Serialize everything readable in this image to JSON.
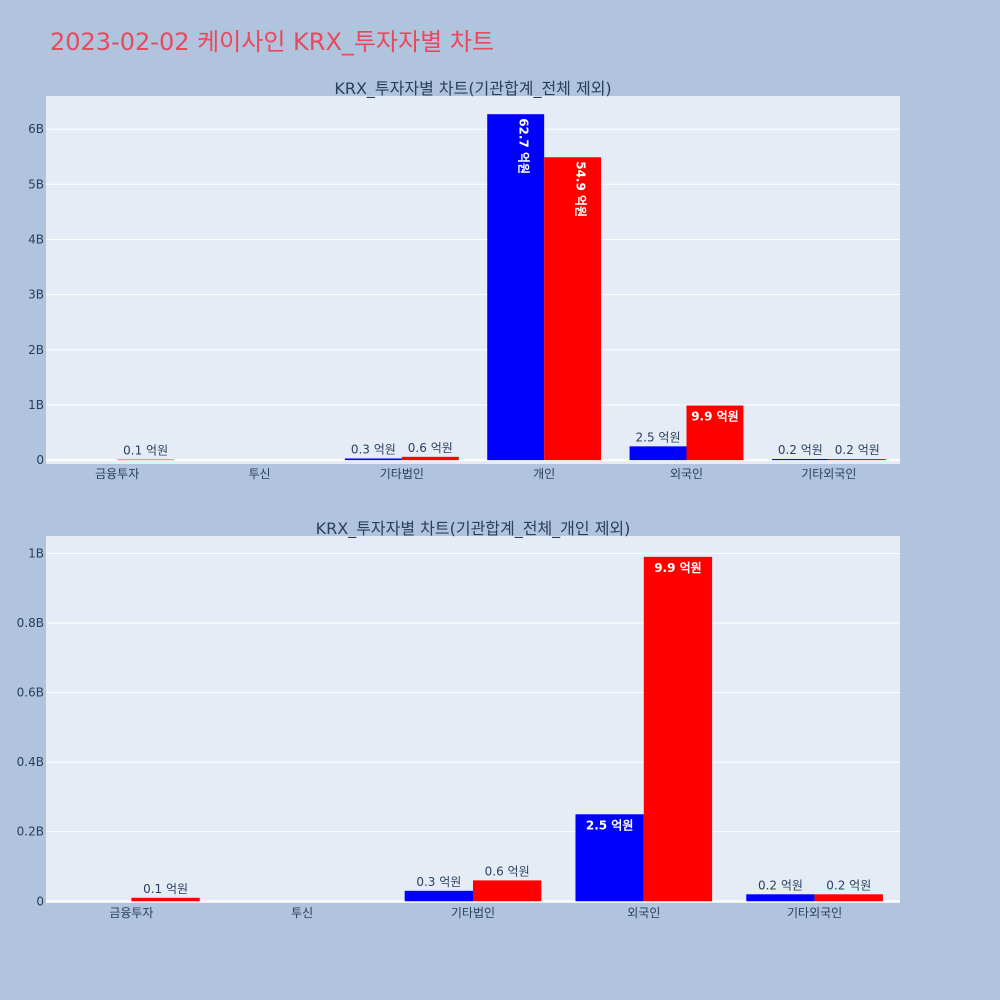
{
  "page": {
    "title": "2023-02-02 케이사인 KRX_투자자별 차트"
  },
  "colors": {
    "series_a": "#0000ff",
    "series_b": "#ff0000",
    "plot_bg": "#e5ecf6",
    "page_bg": "#b0c4de",
    "title": "#e8495d"
  },
  "chart_data": [
    {
      "type": "bar",
      "title": "KRX_투자자별 차트(기관합계_전체 제외)",
      "categories": [
        "금융투자",
        "투신",
        "기타법인",
        "개인",
        "외국인",
        "기타외국인"
      ],
      "series": [
        {
          "values": [
            0,
            0,
            30000000,
            6270000000,
            250000000,
            20000000
          ],
          "labels": [
            "",
            "",
            "0.3 억원",
            "62.7 억원",
            "2.5 억원",
            "0.2 억원"
          ]
        },
        {
          "values": [
            10000000,
            0,
            60000000,
            5490000000,
            990000000,
            20000000
          ],
          "labels": [
            "0.1 억원",
            "",
            "0.6 억원",
            "54.9 억원",
            "9.9 억원",
            "0.2 억원"
          ]
        }
      ],
      "yticks": [
        0,
        1000000000,
        2000000000,
        3000000000,
        4000000000,
        5000000000,
        6000000000
      ],
      "ytick_labels": [
        "0",
        "1B",
        "2B",
        "3B",
        "4B",
        "5B",
        "6B"
      ],
      "ylim": [
        -70000000,
        6600000000
      ],
      "grid": true
    },
    {
      "type": "bar",
      "title": "KRX_투자자별 차트(기관합계_전체_개인 제외)",
      "categories": [
        "금융투자",
        "투신",
        "기타법인",
        "외국인",
        "기타외국인"
      ],
      "series": [
        {
          "values": [
            0,
            0,
            30000000,
            250000000,
            20000000
          ],
          "labels": [
            "",
            "",
            "0.3 억원",
            "2.5 억원",
            "0.2 억원"
          ]
        },
        {
          "values": [
            10000000,
            0,
            60000000,
            990000000,
            20000000
          ],
          "labels": [
            "0.1 억원",
            "",
            "0.6 억원",
            "9.9 억원",
            "0.2 억원"
          ]
        }
      ],
      "yticks": [
        0,
        200000000,
        400000000,
        600000000,
        800000000,
        1000000000
      ],
      "ytick_labels": [
        "0",
        "0.2B",
        "0.4B",
        "0.6B",
        "0.8B",
        "1B"
      ],
      "ylim": [
        -5000000,
        1050000000
      ],
      "grid": true
    }
  ]
}
